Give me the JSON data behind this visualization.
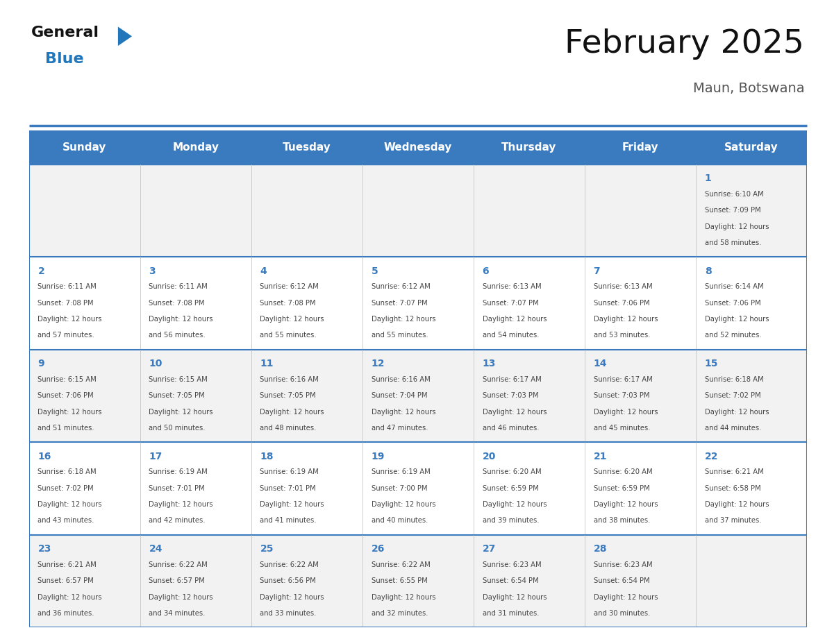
{
  "title": "February 2025",
  "subtitle": "Maun, Botswana",
  "days_of_week": [
    "Sunday",
    "Monday",
    "Tuesday",
    "Wednesday",
    "Thursday",
    "Friday",
    "Saturday"
  ],
  "header_bg": "#3a7abf",
  "header_text": "#ffffff",
  "cell_bg_odd": "#f2f2f2",
  "cell_bg_even": "#ffffff",
  "grid_line_color": "#3a7abf",
  "day_num_color": "#3a7abf",
  "info_text_color": "#444444",
  "title_color": "#111111",
  "subtitle_color": "#555555",
  "logo_general_color": "#111111",
  "logo_blue_color": "#2277bb",
  "calendar": [
    [
      null,
      null,
      null,
      null,
      null,
      null,
      {
        "day": 1,
        "sunrise": "6:10 AM",
        "sunset": "7:09 PM",
        "daylight_hours": 12,
        "daylight_minutes": "58 minutes."
      }
    ],
    [
      {
        "day": 2,
        "sunrise": "6:11 AM",
        "sunset": "7:08 PM",
        "daylight_hours": 12,
        "daylight_minutes": "57 minutes."
      },
      {
        "day": 3,
        "sunrise": "6:11 AM",
        "sunset": "7:08 PM",
        "daylight_hours": 12,
        "daylight_minutes": "56 minutes."
      },
      {
        "day": 4,
        "sunrise": "6:12 AM",
        "sunset": "7:08 PM",
        "daylight_hours": 12,
        "daylight_minutes": "55 minutes."
      },
      {
        "day": 5,
        "sunrise": "6:12 AM",
        "sunset": "7:07 PM",
        "daylight_hours": 12,
        "daylight_minutes": "55 minutes."
      },
      {
        "day": 6,
        "sunrise": "6:13 AM",
        "sunset": "7:07 PM",
        "daylight_hours": 12,
        "daylight_minutes": "54 minutes."
      },
      {
        "day": 7,
        "sunrise": "6:13 AM",
        "sunset": "7:06 PM",
        "daylight_hours": 12,
        "daylight_minutes": "53 minutes."
      },
      {
        "day": 8,
        "sunrise": "6:14 AM",
        "sunset": "7:06 PM",
        "daylight_hours": 12,
        "daylight_minutes": "52 minutes."
      }
    ],
    [
      {
        "day": 9,
        "sunrise": "6:15 AM",
        "sunset": "7:06 PM",
        "daylight_hours": 12,
        "daylight_minutes": "51 minutes."
      },
      {
        "day": 10,
        "sunrise": "6:15 AM",
        "sunset": "7:05 PM",
        "daylight_hours": 12,
        "daylight_minutes": "50 minutes."
      },
      {
        "day": 11,
        "sunrise": "6:16 AM",
        "sunset": "7:05 PM",
        "daylight_hours": 12,
        "daylight_minutes": "48 minutes."
      },
      {
        "day": 12,
        "sunrise": "6:16 AM",
        "sunset": "7:04 PM",
        "daylight_hours": 12,
        "daylight_minutes": "47 minutes."
      },
      {
        "day": 13,
        "sunrise": "6:17 AM",
        "sunset": "7:03 PM",
        "daylight_hours": 12,
        "daylight_minutes": "46 minutes."
      },
      {
        "day": 14,
        "sunrise": "6:17 AM",
        "sunset": "7:03 PM",
        "daylight_hours": 12,
        "daylight_minutes": "45 minutes."
      },
      {
        "day": 15,
        "sunrise": "6:18 AM",
        "sunset": "7:02 PM",
        "daylight_hours": 12,
        "daylight_minutes": "44 minutes."
      }
    ],
    [
      {
        "day": 16,
        "sunrise": "6:18 AM",
        "sunset": "7:02 PM",
        "daylight_hours": 12,
        "daylight_minutes": "43 minutes."
      },
      {
        "day": 17,
        "sunrise": "6:19 AM",
        "sunset": "7:01 PM",
        "daylight_hours": 12,
        "daylight_minutes": "42 minutes."
      },
      {
        "day": 18,
        "sunrise": "6:19 AM",
        "sunset": "7:01 PM",
        "daylight_hours": 12,
        "daylight_minutes": "41 minutes."
      },
      {
        "day": 19,
        "sunrise": "6:19 AM",
        "sunset": "7:00 PM",
        "daylight_hours": 12,
        "daylight_minutes": "40 minutes."
      },
      {
        "day": 20,
        "sunrise": "6:20 AM",
        "sunset": "6:59 PM",
        "daylight_hours": 12,
        "daylight_minutes": "39 minutes."
      },
      {
        "day": 21,
        "sunrise": "6:20 AM",
        "sunset": "6:59 PM",
        "daylight_hours": 12,
        "daylight_minutes": "38 minutes."
      },
      {
        "day": 22,
        "sunrise": "6:21 AM",
        "sunset": "6:58 PM",
        "daylight_hours": 12,
        "daylight_minutes": "37 minutes."
      }
    ],
    [
      {
        "day": 23,
        "sunrise": "6:21 AM",
        "sunset": "6:57 PM",
        "daylight_hours": 12,
        "daylight_minutes": "36 minutes."
      },
      {
        "day": 24,
        "sunrise": "6:22 AM",
        "sunset": "6:57 PM",
        "daylight_hours": 12,
        "daylight_minutes": "34 minutes."
      },
      {
        "day": 25,
        "sunrise": "6:22 AM",
        "sunset": "6:56 PM",
        "daylight_hours": 12,
        "daylight_minutes": "33 minutes."
      },
      {
        "day": 26,
        "sunrise": "6:22 AM",
        "sunset": "6:55 PM",
        "daylight_hours": 12,
        "daylight_minutes": "32 minutes."
      },
      {
        "day": 27,
        "sunrise": "6:23 AM",
        "sunset": "6:54 PM",
        "daylight_hours": 12,
        "daylight_minutes": "31 minutes."
      },
      {
        "day": 28,
        "sunrise": "6:23 AM",
        "sunset": "6:54 PM",
        "daylight_hours": 12,
        "daylight_minutes": "30 minutes."
      },
      null
    ]
  ],
  "figsize": [
    11.88,
    9.18
  ],
  "dpi": 100
}
